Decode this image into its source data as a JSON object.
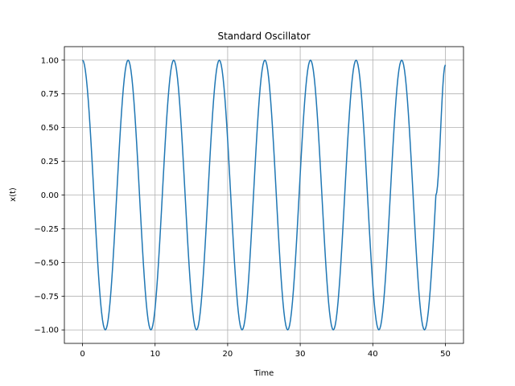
{
  "chart_data": {
    "type": "line",
    "title": "Standard Oscillator",
    "xlabel": "Time",
    "ylabel": "x(t)",
    "xlim": [
      -2.5,
      52.5
    ],
    "ylim": [
      -1.1,
      1.1
    ],
    "grid": true,
    "x_ticks": [
      0,
      10,
      20,
      30,
      40,
      50
    ],
    "x_tick_labels": [
      "0",
      "10",
      "20",
      "30",
      "40",
      "50"
    ],
    "y_ticks": [
      -1.0,
      -0.75,
      -0.5,
      -0.25,
      0.0,
      0.25,
      0.5,
      0.75,
      1.0
    ],
    "y_tick_labels": [
      "−1.00",
      "−0.75",
      "−0.50",
      "−0.25",
      "0.00",
      "0.25",
      "0.50",
      "0.75",
      "1.00"
    ],
    "series": [
      {
        "color": "#1f77b4",
        "x": [
          0,
          1.5708,
          3.1416,
          4.7124,
          6.2832,
          7.854,
          9.4248,
          10.9956,
          12.5664,
          14.1372,
          15.708,
          17.2788,
          18.8496,
          20.4204,
          21.9911,
          23.5619,
          25.1327,
          26.7035,
          28.2743,
          29.8451,
          31.4159,
          32.9867,
          34.5575,
          36.1283,
          37.6991,
          39.2699,
          40.8407,
          42.4115,
          43.9823,
          45.5531,
          47.1239,
          48.6947,
          50.0
        ],
        "y": [
          1.0,
          0.0,
          -1.0,
          0.0,
          1.0,
          0.0,
          -1.0,
          0.0,
          1.0,
          0.0,
          -1.0,
          0.0,
          1.0,
          0.0,
          -1.0,
          0.0,
          1.0,
          0.0,
          -1.0,
          0.0,
          1.0,
          0.0,
          -1.0,
          0.0,
          1.0,
          0.0,
          -1.0,
          0.0,
          1.0,
          0.0,
          -1.0,
          0.0,
          0.965
        ]
      }
    ]
  }
}
